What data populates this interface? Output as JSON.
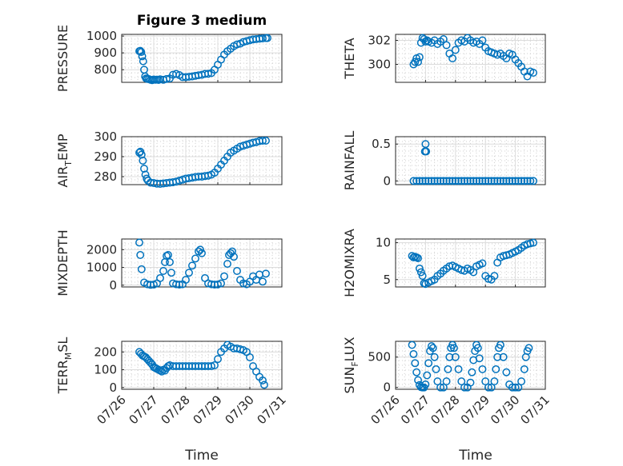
{
  "figure": {
    "title": "Figure 3 medium",
    "marker_color": "#0072BD",
    "x_tick_labels": [
      "07/26",
      "07/27",
      "07/28",
      "07/29",
      "07/30",
      "07/31"
    ],
    "xlabel": "Time"
  },
  "chart_data": [
    {
      "type": "scatter",
      "ylabel": "PRESSURE",
      "xlim": [
        0,
        5
      ],
      "ylim": [
        725,
        1010
      ],
      "yticks": [
        1000,
        900,
        800
      ],
      "grid": true,
      "x": [
        0.55,
        0.58,
        0.61,
        0.64,
        0.67,
        0.7,
        0.73,
        0.76,
        0.8,
        0.85,
        0.9,
        0.95,
        1.0,
        1.05,
        1.1,
        1.15,
        1.2,
        1.3,
        1.4,
        1.5,
        1.6,
        1.7,
        1.8,
        1.9,
        2.0,
        2.1,
        2.2,
        2.3,
        2.4,
        2.5,
        2.6,
        2.7,
        2.8,
        2.9,
        3.0,
        3.1,
        3.2,
        3.3,
        3.4,
        3.5,
        3.6,
        3.7,
        3.8,
        3.9,
        4.0,
        4.1,
        4.2,
        4.3,
        4.4,
        4.5,
        4.55
      ],
      "y": [
        910,
        912,
        905,
        880,
        850,
        800,
        760,
        748,
        745,
        744,
        740,
        738,
        742,
        740,
        741,
        739,
        743,
        740,
        745,
        748,
        770,
        775,
        768,
        756,
        756,
        758,
        760,
        764,
        767,
        770,
        775,
        776,
        780,
        800,
        830,
        860,
        890,
        910,
        925,
        940,
        950,
        955,
        965,
        970,
        975,
        980,
        982,
        984,
        986,
        988,
        988
      ]
    },
    {
      "type": "scatter",
      "ylabel": "THETA",
      "xlim": [
        0,
        5
      ],
      "ylim": [
        298.5,
        302.5
      ],
      "yticks": [
        302,
        300
      ],
      "grid": true,
      "x": [
        0.6,
        0.65,
        0.7,
        0.75,
        0.8,
        0.85,
        0.9,
        0.95,
        1.0,
        1.05,
        1.1,
        1.2,
        1.3,
        1.4,
        1.5,
        1.6,
        1.7,
        1.8,
        1.9,
        2.0,
        2.1,
        2.2,
        2.3,
        2.4,
        2.5,
        2.6,
        2.7,
        2.8,
        2.9,
        3.0,
        3.1,
        3.2,
        3.3,
        3.4,
        3.5,
        3.6,
        3.7,
        3.8,
        3.9,
        4.0,
        4.1,
        4.2,
        4.3,
        4.4,
        4.5,
        4.6
      ],
      "y": [
        300.0,
        300.2,
        300.5,
        300.2,
        300.6,
        301.8,
        302.2,
        302.1,
        301.9,
        302.0,
        301.9,
        301.8,
        302.0,
        301.7,
        301.9,
        302.1,
        301.6,
        300.9,
        300.5,
        301.2,
        301.8,
        302.0,
        301.9,
        302.2,
        302.0,
        301.8,
        301.9,
        301.7,
        302.0,
        301.4,
        301.1,
        301.0,
        300.9,
        300.8,
        300.9,
        300.7,
        300.5,
        300.9,
        300.8,
        300.4,
        300.1,
        299.8,
        299.4,
        299.0,
        299.4,
        299.3
      ]
    },
    {
      "type": "scatter",
      "ylabel": "AIR_TEMP",
      "xlim": [
        0,
        5
      ],
      "ylim": [
        276,
        300
      ],
      "yticks": [
        300,
        290,
        280
      ],
      "grid": true,
      "x": [
        0.55,
        0.58,
        0.62,
        0.66,
        0.7,
        0.74,
        0.78,
        0.82,
        0.9,
        1.0,
        1.1,
        1.2,
        1.3,
        1.4,
        1.5,
        1.6,
        1.7,
        1.8,
        1.9,
        2.0,
        2.1,
        2.2,
        2.3,
        2.4,
        2.5,
        2.6,
        2.7,
        2.8,
        2.9,
        3.0,
        3.1,
        3.2,
        3.3,
        3.4,
        3.5,
        3.6,
        3.7,
        3.8,
        3.9,
        4.0,
        4.1,
        4.2,
        4.3,
        4.4,
        4.5
      ],
      "y": [
        292,
        292.5,
        291,
        288,
        284,
        281,
        279,
        278,
        277,
        276.8,
        276.5,
        276.4,
        276.6,
        276.8,
        277,
        277.2,
        277.5,
        278,
        278.5,
        279,
        279.2,
        279.5,
        279.8,
        280,
        280,
        280.3,
        280.5,
        281,
        282,
        284,
        286,
        288,
        290,
        292,
        293,
        294,
        295,
        295.5,
        296,
        296.5,
        297,
        297.3,
        297.8,
        298,
        298
      ]
    },
    {
      "type": "scatter",
      "ylabel": "RAINFALL",
      "xlim": [
        0,
        5
      ],
      "ylim": [
        -0.05,
        0.6
      ],
      "yticks": [
        0.5,
        0
      ],
      "grid": true,
      "x": [
        0.6,
        0.7,
        0.8,
        0.9,
        1.0,
        1.1,
        1.2,
        1.3,
        1.4,
        1.5,
        1.6,
        1.7,
        1.8,
        1.9,
        2.0,
        2.1,
        2.2,
        2.3,
        2.4,
        2.5,
        2.6,
        2.7,
        2.8,
        2.9,
        3.0,
        3.1,
        3.2,
        3.3,
        3.4,
        3.5,
        3.6,
        3.7,
        3.8,
        3.9,
        4.0,
        4.1,
        4.2,
        4.3,
        4.4,
        4.5,
        4.6,
        0.98,
        1.0,
        1.02
      ],
      "y": [
        0,
        0,
        0,
        0,
        0,
        0,
        0,
        0,
        0,
        0,
        0,
        0,
        0,
        0,
        0,
        0,
        0,
        0,
        0,
        0,
        0,
        0,
        0,
        0,
        0,
        0,
        0,
        0,
        0,
        0,
        0,
        0,
        0,
        0,
        0,
        0,
        0,
        0,
        0,
        0,
        0,
        0.4,
        0.5,
        0.4
      ]
    },
    {
      "type": "scatter",
      "ylabel": "MIXDEPTH",
      "xlim": [
        0,
        5
      ],
      "ylim": [
        -100,
        2600
      ],
      "yticks": [
        2000,
        1000,
        0
      ],
      "grid": true,
      "x": [
        0.55,
        0.58,
        0.62,
        0.7,
        0.8,
        0.9,
        1.0,
        1.1,
        1.2,
        1.3,
        1.35,
        1.4,
        1.45,
        1.5,
        1.55,
        1.6,
        1.7,
        1.8,
        1.9,
        2.0,
        2.1,
        2.2,
        2.3,
        2.4,
        2.45,
        2.5,
        2.6,
        2.7,
        2.8,
        2.9,
        3.0,
        3.1,
        3.2,
        3.3,
        3.35,
        3.4,
        3.45,
        3.5,
        3.6,
        3.7,
        3.8,
        3.9,
        4.0,
        4.1,
        4.2,
        4.3,
        4.4,
        4.5
      ],
      "y": [
        2400,
        1700,
        900,
        150,
        50,
        20,
        30,
        100,
        400,
        800,
        1300,
        1650,
        1700,
        1300,
        700,
        100,
        50,
        30,
        50,
        300,
        700,
        1100,
        1500,
        1900,
        2000,
        1800,
        400,
        100,
        50,
        30,
        40,
        100,
        500,
        1200,
        1700,
        1800,
        1900,
        1600,
        800,
        300,
        100,
        50,
        200,
        500,
        300,
        600,
        200,
        650
      ]
    },
    {
      "type": "scatter",
      "ylabel": "H2OMIXRA",
      "xlim": [
        0,
        5
      ],
      "ylim": [
        4,
        10.5
      ],
      "yticks": [
        10,
        5
      ],
      "grid": true,
      "x": [
        0.55,
        0.6,
        0.65,
        0.7,
        0.75,
        0.8,
        0.85,
        0.9,
        0.95,
        1.0,
        1.1,
        1.2,
        1.3,
        1.4,
        1.5,
        1.6,
        1.7,
        1.8,
        1.9,
        2.0,
        2.1,
        2.2,
        2.3,
        2.4,
        2.5,
        2.6,
        2.7,
        2.8,
        2.9,
        3.0,
        3.1,
        3.2,
        3.3,
        3.4,
        3.5,
        3.6,
        3.7,
        3.8,
        3.9,
        4.0,
        4.1,
        4.2,
        4.3,
        4.4,
        4.5,
        4.6
      ],
      "y": [
        8.2,
        8.0,
        8.1,
        8.0,
        7.9,
        6.5,
        6.0,
        5.5,
        4.5,
        4.4,
        4.6,
        4.8,
        5.0,
        5.5,
        5.8,
        6.2,
        6.5,
        6.8,
        6.9,
        6.7,
        6.5,
        6.3,
        6.2,
        6.5,
        6.3,
        6.0,
        6.8,
        7.0,
        7.2,
        5.5,
        5.1,
        5.0,
        5.5,
        7.3,
        8.0,
        8.2,
        8.3,
        8.4,
        8.6,
        8.8,
        9.0,
        9.3,
        9.6,
        9.8,
        9.9,
        10.0
      ]
    },
    {
      "type": "scatter",
      "ylabel": "TERR_MSL",
      "xlim": [
        0,
        5
      ],
      "ylim": [
        -10,
        260
      ],
      "yticks": [
        200,
        100,
        0
      ],
      "grid": true,
      "x": [
        0.55,
        0.6,
        0.65,
        0.7,
        0.75,
        0.8,
        0.85,
        0.9,
        0.95,
        1.0,
        1.05,
        1.1,
        1.15,
        1.2,
        1.25,
        1.3,
        1.35,
        1.4,
        1.45,
        1.5,
        1.6,
        1.7,
        1.8,
        1.9,
        2.0,
        2.1,
        2.2,
        2.3,
        2.4,
        2.5,
        2.6,
        2.7,
        2.8,
        2.9,
        3.0,
        3.1,
        3.2,
        3.3,
        3.4,
        3.5,
        3.6,
        3.7,
        3.8,
        3.9,
        4.0,
        4.1,
        4.2,
        4.3,
        4.4,
        4.45
      ],
      "y": [
        200,
        190,
        180,
        175,
        170,
        160,
        150,
        140,
        130,
        115,
        110,
        105,
        100,
        95,
        90,
        100,
        95,
        110,
        120,
        125,
        120,
        120,
        120,
        120,
        120,
        120,
        120,
        120,
        120,
        120,
        120,
        120,
        120,
        125,
        160,
        200,
        220,
        240,
        230,
        220,
        220,
        215,
        210,
        200,
        170,
        120,
        90,
        60,
        40,
        15
      ]
    },
    {
      "type": "scatter",
      "ylabel": "SUN_FLUX",
      "xlim": [
        0,
        5
      ],
      "ylim": [
        -30,
        760
      ],
      "yticks": [
        500,
        0
      ],
      "grid": true,
      "x": [
        0.55,
        0.6,
        0.65,
        0.7,
        0.75,
        0.8,
        0.85,
        0.9,
        0.95,
        1.0,
        1.05,
        1.1,
        1.15,
        1.2,
        1.25,
        1.3,
        1.35,
        1.4,
        1.5,
        1.6,
        1.7,
        1.75,
        1.8,
        1.85,
        1.9,
        1.95,
        2.0,
        2.1,
        2.2,
        2.3,
        2.4,
        2.5,
        2.55,
        2.6,
        2.65,
        2.7,
        2.75,
        2.8,
        2.9,
        3.0,
        3.1,
        3.2,
        3.3,
        3.35,
        3.4,
        3.45,
        3.5,
        3.6,
        3.7,
        3.8,
        3.9,
        4.0,
        4.1,
        4.2,
        4.3,
        4.35,
        4.4,
        4.45
      ],
      "y": [
        700,
        550,
        400,
        250,
        120,
        40,
        5,
        0,
        0,
        50,
        200,
        400,
        600,
        680,
        650,
        500,
        300,
        100,
        0,
        0,
        100,
        300,
        500,
        650,
        700,
        650,
        500,
        300,
        100,
        0,
        0,
        80,
        250,
        450,
        600,
        700,
        650,
        480,
        300,
        100,
        0,
        0,
        100,
        300,
        500,
        650,
        700,
        500,
        250,
        50,
        0,
        0,
        0,
        100,
        300,
        500,
        600,
        650
      ]
    }
  ]
}
